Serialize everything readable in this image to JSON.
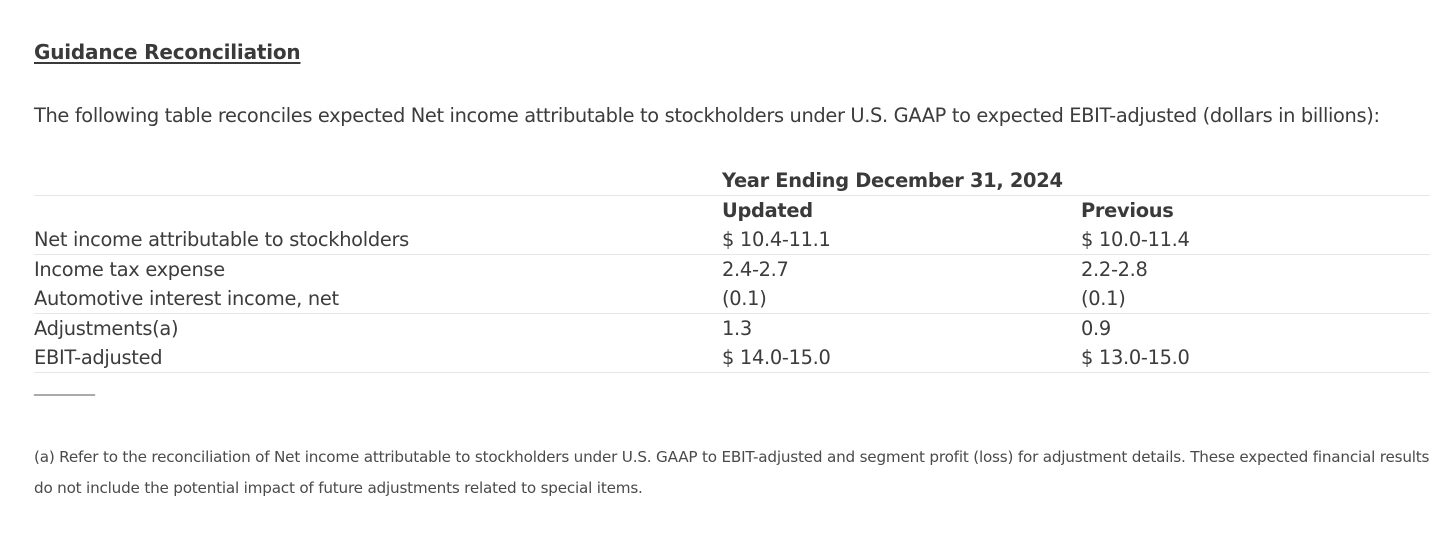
{
  "heading": "Guidance Reconciliation",
  "intro": "The following table reconciles expected Net income attributable to stockholders under U.S. GAAP to expected EBIT-adjusted (dollars in billions):",
  "table": {
    "period_header": "Year Ending December 31, 2024",
    "col_updated": "Updated",
    "col_previous": "Previous",
    "rows": [
      {
        "label": "Net income attributable to stockholders",
        "updated": "$ 10.4-11.1",
        "previous": "$ 10.0-11.4"
      },
      {
        "label": "Income tax expense",
        "updated": "2.4-2.7",
        "previous": "2.2-2.8"
      },
      {
        "label": "Automotive interest income, net",
        "updated": "(0.1)",
        "previous": "(0.1)"
      },
      {
        "label": "Adjustments(a)",
        "updated": "1.3",
        "previous": "0.9"
      },
      {
        "label": "EBIT-adjusted",
        "updated": "$ 14.0-15.0",
        "previous": "$ 13.0-15.0"
      }
    ]
  },
  "separator": "__________",
  "footnote": "(a) Refer to the reconciliation of Net income attributable to stockholders under U.S. GAAP to EBIT-adjusted and segment profit (loss) for adjustment details. These expected financial results do not include the potential impact of future adjustments related to special items."
}
